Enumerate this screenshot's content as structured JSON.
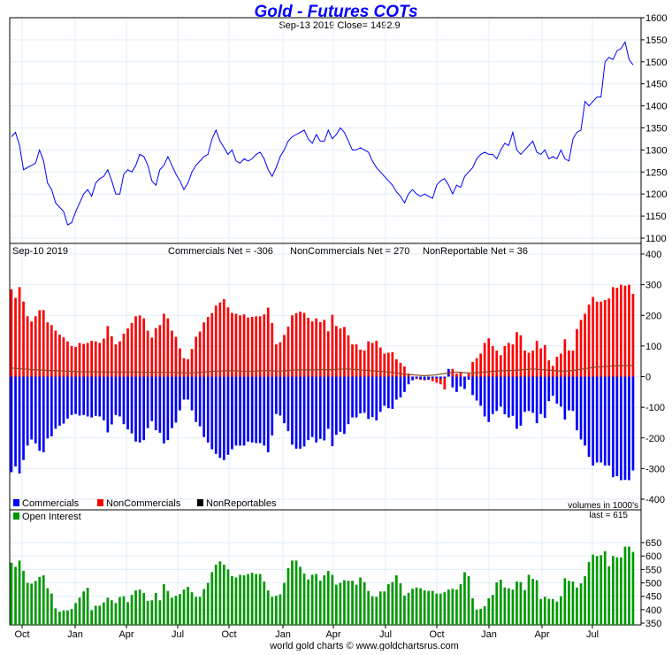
{
  "chart_data": [
    {
      "type": "line",
      "title": "Gold - Futures COTs",
      "subtitle": "Sep-13  2019   Close= 1492.9",
      "ylim": [
        1100,
        1600
      ],
      "yticks": [
        1100,
        1150,
        1200,
        1250,
        1300,
        1350,
        1400,
        1450,
        1500,
        1550,
        1600
      ],
      "grid": true,
      "color": "#0000ff",
      "values": [
        1330,
        1340,
        1310,
        1255,
        1260,
        1265,
        1270,
        1300,
        1275,
        1225,
        1210,
        1180,
        1170,
        1160,
        1130,
        1135,
        1160,
        1180,
        1200,
        1210,
        1195,
        1225,
        1235,
        1240,
        1255,
        1230,
        1200,
        1200,
        1245,
        1255,
        1250,
        1265,
        1290,
        1285,
        1265,
        1230,
        1220,
        1255,
        1265,
        1285,
        1265,
        1245,
        1230,
        1210,
        1225,
        1250,
        1265,
        1275,
        1285,
        1290,
        1325,
        1345,
        1320,
        1305,
        1290,
        1300,
        1275,
        1270,
        1280,
        1275,
        1280,
        1290,
        1295,
        1280,
        1255,
        1240,
        1260,
        1285,
        1300,
        1320,
        1330,
        1335,
        1340,
        1345,
        1325,
        1315,
        1335,
        1320,
        1320,
        1345,
        1325,
        1335,
        1350,
        1340,
        1320,
        1300,
        1300,
        1305,
        1300,
        1295,
        1275,
        1260,
        1250,
        1240,
        1230,
        1220,
        1205,
        1195,
        1180,
        1200,
        1210,
        1200,
        1195,
        1200,
        1195,
        1190,
        1220,
        1230,
        1235,
        1220,
        1200,
        1220,
        1215,
        1240,
        1250,
        1260,
        1280,
        1290,
        1295,
        1290,
        1290,
        1280,
        1300,
        1315,
        1310,
        1340,
        1300,
        1290,
        1300,
        1310,
        1320,
        1295,
        1290,
        1300,
        1280,
        1285,
        1280,
        1300,
        1280,
        1275,
        1325,
        1340,
        1345,
        1410,
        1400,
        1410,
        1420,
        1420,
        1500,
        1510,
        1505,
        1525,
        1530,
        1545,
        1505,
        1492.9
      ]
    },
    {
      "type": "bar",
      "header": {
        "date": "Sep-10  2019",
        "commercials": "Commercials Net = -306",
        "noncommercials": "NonCommercials Net = 270",
        "nonreportable": "NonReportable Net = 36"
      },
      "ylim": [
        -400,
        400
      ],
      "yticks": [
        -400,
        -300,
        -200,
        -100,
        0,
        100,
        200,
        300,
        400
      ],
      "note": "volumes in 1000's",
      "grid": true,
      "legend_placement": "bottom-left",
      "series": [
        {
          "name": "Commercials",
          "color": "#0000ff",
          "values": [
            -312,
            -293,
            -316,
            -272,
            -225,
            -205,
            -218,
            -242,
            -247,
            -202,
            -195,
            -170,
            -160,
            -153,
            -137,
            -125,
            -122,
            -127,
            -125,
            -130,
            -133,
            -128,
            -130,
            -143,
            -182,
            -156,
            -125,
            -130,
            -155,
            -172,
            -185,
            -212,
            -215,
            -207,
            -168,
            -145,
            -175,
            -183,
            -218,
            -207,
            -168,
            -150,
            -110,
            -75,
            -75,
            -110,
            -148,
            -162,
            -197,
            -215,
            -237,
            -252,
            -265,
            -272,
            -255,
            -237,
            -225,
            -225,
            -225,
            -212,
            -215,
            -217,
            -217,
            -225,
            -247,
            -192,
            -122,
            -127,
            -152,
            -178,
            -222,
            -235,
            -235,
            -228,
            -207,
            -197,
            -215,
            -203,
            -208,
            -170,
            -227,
            -190,
            -180,
            -187,
            -155,
            -133,
            -133,
            -120,
            -118,
            -138,
            -132,
            -143,
            -115,
            -95,
            -103,
            -105,
            -75,
            -68,
            -50,
            -25,
            -12,
            -5,
            -8,
            -10,
            -10,
            -5,
            -5,
            -8,
            -5,
            25,
            -35,
            -50,
            -32,
            -40,
            -10,
            -60,
            -78,
            -95,
            -130,
            -148,
            -122,
            -112,
            -98,
            -123,
            -133,
            -128,
            -170,
            -160,
            -115,
            -112,
            -118,
            -152,
            -122,
            -135,
            -80,
            -62,
            -88,
            -98,
            -140,
            -110,
            -112,
            -175,
            -205,
            -225,
            -262,
            -290,
            -280,
            -280,
            -290,
            -290,
            -328,
            -325,
            -338,
            -337,
            -338,
            -306
          ]
        },
        {
          "name": "NonCommercials",
          "color": "#ff0000",
          "values": [
            285,
            257,
            292,
            245,
            197,
            180,
            197,
            217,
            217,
            177,
            168,
            150,
            137,
            128,
            115,
            100,
            97,
            110,
            107,
            110,
            117,
            115,
            110,
            124,
            165,
            132,
            105,
            115,
            140,
            157,
            175,
            197,
            200,
            190,
            150,
            127,
            158,
            168,
            205,
            190,
            150,
            130,
            92,
            60,
            57,
            90,
            130,
            147,
            177,
            195,
            207,
            232,
            242,
            253,
            226,
            208,
            205,
            200,
            203,
            193,
            195,
            197,
            197,
            203,
            225,
            175,
            105,
            112,
            136,
            163,
            200,
            207,
            212,
            208,
            192,
            180,
            190,
            178,
            185,
            148,
            202,
            165,
            157,
            162,
            135,
            105,
            105,
            88,
            85,
            115,
            110,
            117,
            95,
            75,
            78,
            80,
            57,
            45,
            33,
            10,
            -5,
            -8,
            -10,
            -12,
            -5,
            -15,
            -20,
            -25,
            -42,
            17,
            25,
            10,
            15,
            -10,
            10,
            48,
            60,
            75,
            110,
            125,
            100,
            85,
            70,
            100,
            110,
            105,
            145,
            135,
            85,
            78,
            85,
            117,
            92,
            103,
            53,
            35,
            65,
            75,
            122,
            85,
            85,
            155,
            185,
            205,
            235,
            260,
            245,
            245,
            250,
            255,
            292,
            290,
            300,
            297,
            300,
            270
          ]
        },
        {
          "name": "NonReportables",
          "color": "#000000",
          "values": [
            28,
            27,
            26,
            25,
            24,
            23,
            22,
            22,
            21,
            20,
            20,
            19,
            19,
            18,
            18,
            17,
            17,
            16,
            16,
            16,
            16,
            16,
            15,
            15,
            15,
            15,
            15,
            15,
            15,
            15,
            15,
            15,
            15,
            14,
            14,
            14,
            14,
            14,
            14,
            14,
            14,
            13,
            13,
            12,
            12,
            12,
            13,
            14,
            15,
            16,
            17,
            18,
            18,
            19,
            19,
            19,
            19,
            18,
            18,
            18,
            18,
            18,
            19,
            19,
            20,
            19,
            18,
            18,
            19,
            20,
            21,
            22,
            22,
            22,
            22,
            22,
            22,
            23,
            23,
            22,
            23,
            24,
            24,
            25,
            25,
            24,
            23,
            22,
            21,
            20,
            19,
            18,
            17,
            16,
            15,
            14,
            12,
            10,
            8,
            7,
            6,
            5,
            4,
            3,
            4,
            5,
            6,
            8,
            10,
            12,
            14,
            15,
            14,
            13,
            12,
            12,
            13,
            14,
            15,
            16,
            17,
            18,
            19,
            19,
            20,
            20,
            21,
            22,
            23,
            24,
            25,
            24,
            23,
            22,
            21,
            20,
            19,
            18,
            18,
            19,
            20,
            22,
            24,
            26,
            28,
            30,
            31,
            32,
            33,
            34,
            35,
            35,
            36,
            36,
            36,
            36
          ]
        }
      ]
    },
    {
      "type": "bar",
      "ylim": [
        350,
        650
      ],
      "yticks": [
        350,
        400,
        450,
        500,
        550,
        600,
        650
      ],
      "grid": true,
      "last_label": "last = 615",
      "series": [
        {
          "name": "Open Interest",
          "color": "#009900",
          "values": [
            575,
            560,
            583,
            545,
            500,
            497,
            507,
            522,
            528,
            480,
            460,
            405,
            393,
            397,
            397,
            402,
            425,
            445,
            468,
            482,
            398,
            415,
            415,
            427,
            445,
            435,
            425,
            447,
            450,
            428,
            455,
            472,
            475,
            462,
            433,
            435,
            462,
            435,
            495,
            470,
            445,
            452,
            458,
            475,
            485,
            465,
            448,
            448,
            477,
            500,
            540,
            568,
            580,
            568,
            550,
            525,
            520,
            530,
            528,
            533,
            538,
            533,
            533,
            505,
            472,
            448,
            452,
            457,
            500,
            555,
            583,
            583,
            560,
            535,
            513,
            530,
            533,
            508,
            528,
            545,
            530,
            493,
            500,
            510,
            508,
            508,
            493,
            520,
            503,
            470,
            450,
            448,
            468,
            468,
            495,
            503,
            528,
            498,
            453,
            463,
            478,
            483,
            480,
            472,
            470,
            470,
            460,
            460,
            465,
            475,
            478,
            475,
            495,
            540,
            525,
            443,
            400,
            403,
            413,
            443,
            455,
            502,
            512,
            483,
            480,
            475,
            505,
            503,
            473,
            530,
            515,
            510,
            440,
            448,
            440,
            440,
            430,
            450,
            517,
            508,
            505,
            483,
            498,
            525,
            578,
            605,
            600,
            603,
            618,
            562,
            600,
            595,
            595,
            635,
            635,
            615
          ]
        }
      ]
    }
  ],
  "x_axis": {
    "labels": [
      "Oct",
      "Jan",
      "Apr",
      "Jul",
      "Oct",
      "Jan",
      "Apr",
      "Jul",
      "Oct",
      "Jan",
      "Apr",
      "Jul"
    ]
  },
  "footer": "world gold charts © www.goldchartsrus.com"
}
